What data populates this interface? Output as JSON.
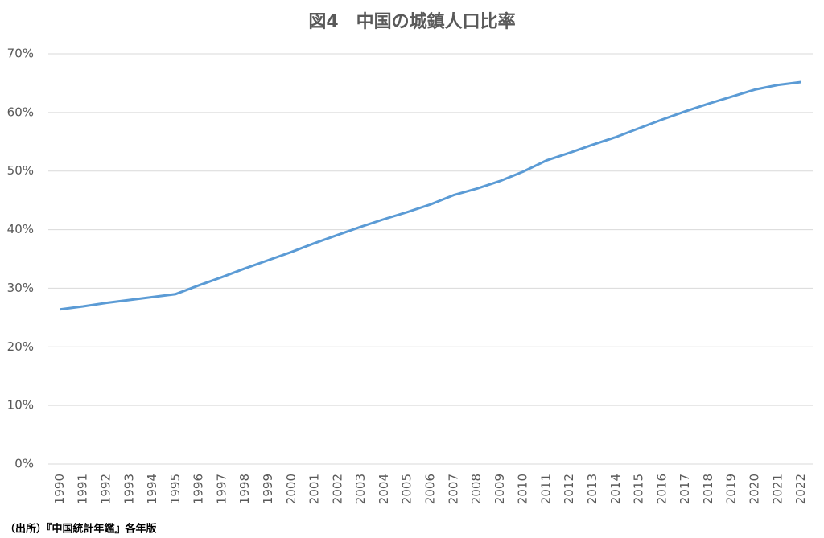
{
  "chart_data": {
    "type": "line",
    "title": "図4　中国の城鎮人口比率",
    "source": "（出所）『中国統計年鑑』各年版",
    "categories": [
      "1990",
      "1991",
      "1992",
      "1993",
      "1994",
      "1995",
      "1996",
      "1997",
      "1998",
      "1999",
      "2000",
      "2001",
      "2002",
      "2003",
      "2004",
      "2005",
      "2006",
      "2007",
      "2008",
      "2009",
      "2010",
      "2011",
      "2012",
      "2013",
      "2014",
      "2015",
      "2016",
      "2017",
      "2018",
      "2019",
      "2020",
      "2021",
      "2022"
    ],
    "values": [
      26.4,
      26.9,
      27.5,
      28.0,
      28.5,
      29.0,
      30.5,
      31.9,
      33.4,
      34.8,
      36.2,
      37.7,
      39.1,
      40.5,
      41.8,
      43.0,
      44.3,
      45.9,
      47.0,
      48.3,
      49.9,
      51.8,
      53.1,
      54.5,
      55.8,
      57.3,
      58.8,
      60.2,
      61.5,
      62.7,
      63.9,
      64.7,
      65.2
    ],
    "color": "#5b9bd5",
    "ylim": [
      0,
      70
    ],
    "yticks": [
      {
        "value": 0,
        "label": "0%"
      },
      {
        "value": 10,
        "label": "10%"
      },
      {
        "value": 20,
        "label": "20%"
      },
      {
        "value": 30,
        "label": "30%"
      },
      {
        "value": 40,
        "label": "40%"
      },
      {
        "value": 50,
        "label": "50%"
      },
      {
        "value": 60,
        "label": "60%"
      },
      {
        "value": 70,
        "label": "70%"
      }
    ],
    "grid": true
  }
}
